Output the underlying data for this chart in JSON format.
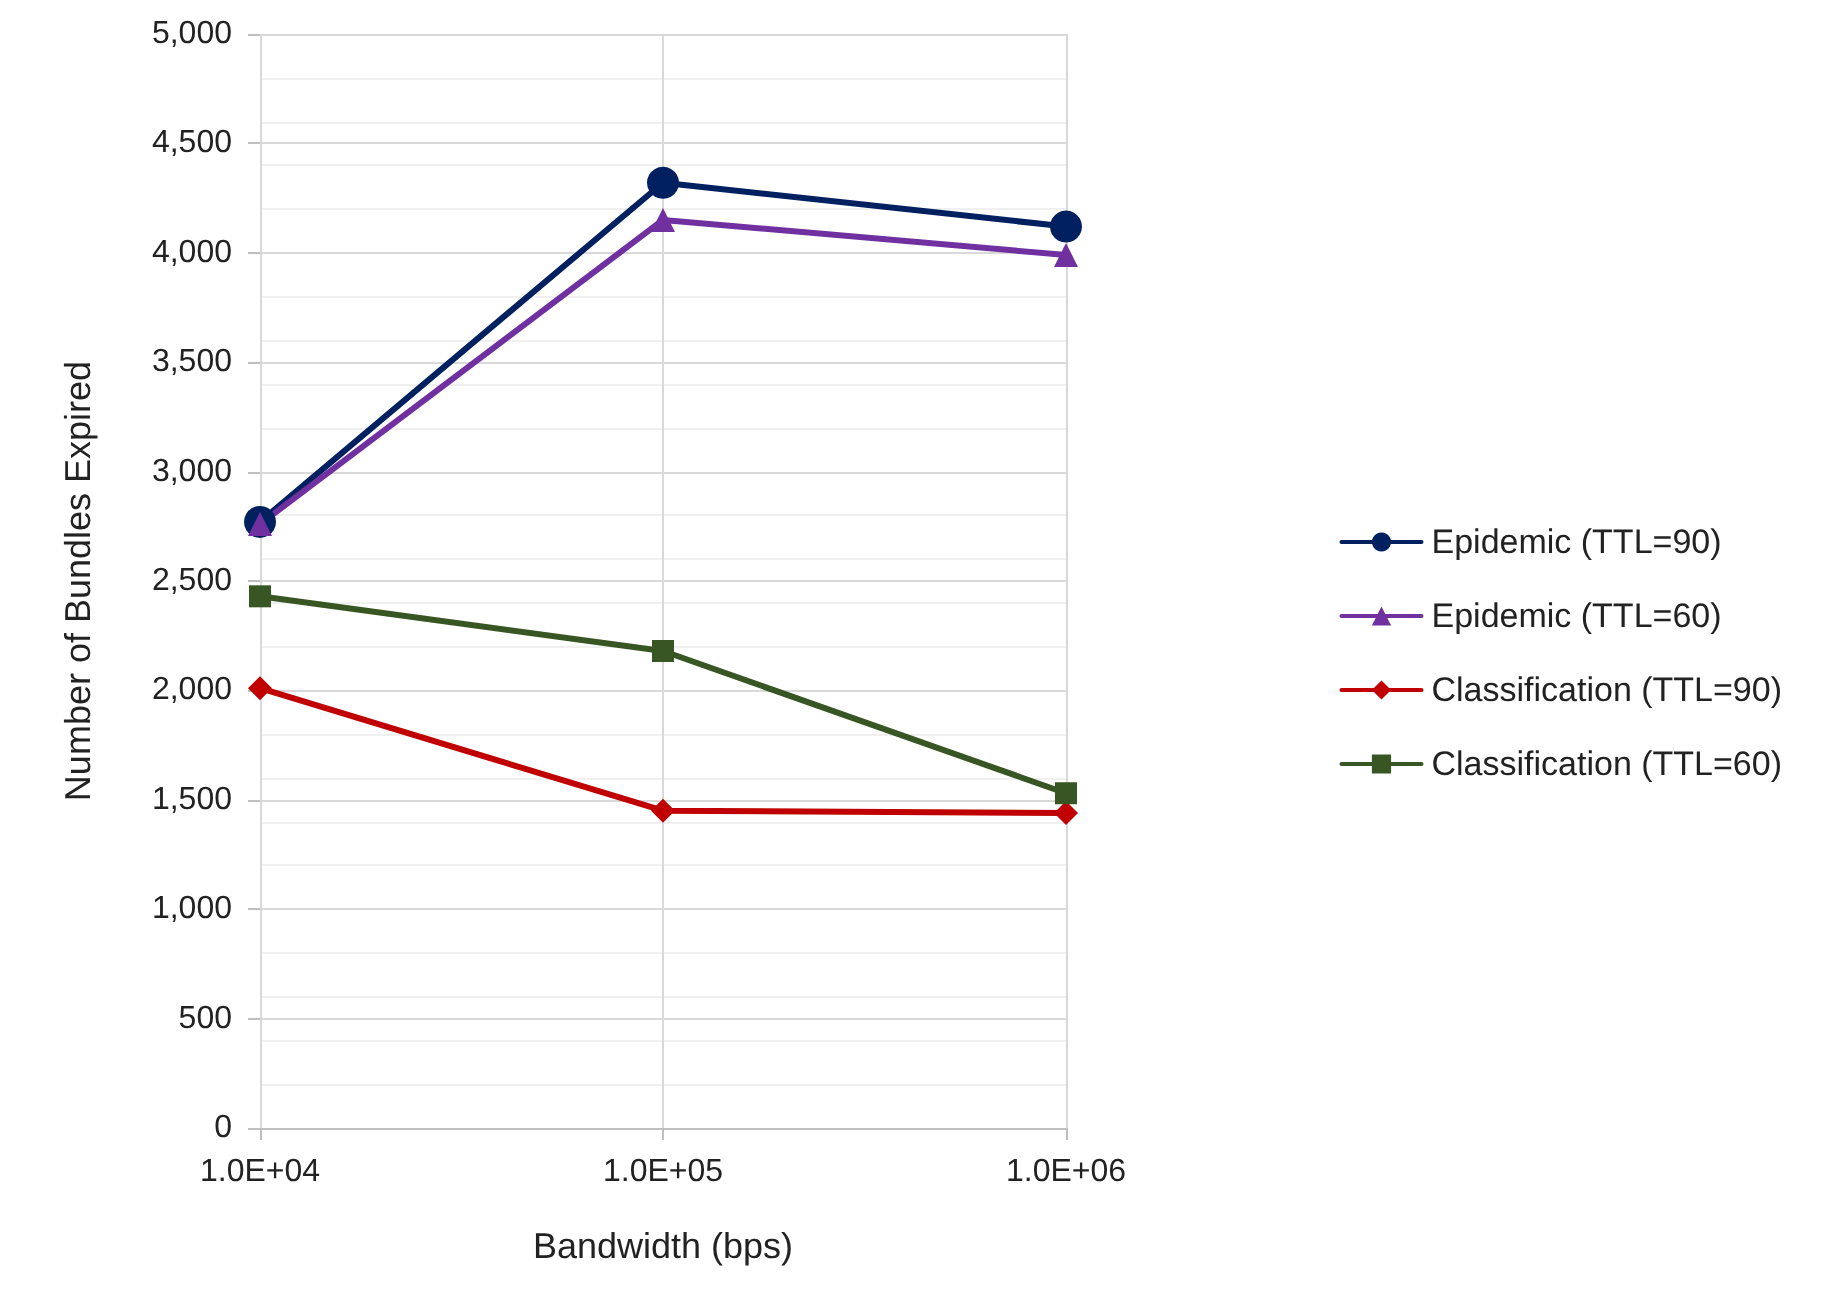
{
  "chart_data": {
    "type": "line",
    "xlabel": "Bandwidth (bps)",
    "ylabel": "Number of Bundles Expired",
    "x": [
      10000,
      100000,
      1000000
    ],
    "log": "x",
    "xlim": [
      10000,
      1000000
    ],
    "xticks": [
      {
        "value": 10000,
        "label": "1.0E+04"
      },
      {
        "value": 100000,
        "label": "1.0E+05"
      },
      {
        "value": 1000000,
        "label": "1.0E+06"
      }
    ],
    "ylim": [
      0,
      5000
    ],
    "yticks": [
      {
        "value": 0,
        "label": "0"
      },
      {
        "value": 500,
        "label": "500"
      },
      {
        "value": 1000,
        "label": "1,000"
      },
      {
        "value": 1500,
        "label": "1,500"
      },
      {
        "value": 2000,
        "label": "2,000"
      },
      {
        "value": 2500,
        "label": "2,500"
      },
      {
        "value": 3000,
        "label": "3,000"
      },
      {
        "value": 3500,
        "label": "3,500"
      },
      {
        "value": 4000,
        "label": "4,000"
      },
      {
        "value": 4500,
        "label": "4,500"
      },
      {
        "value": 5000,
        "label": "5,000"
      }
    ],
    "grid": true,
    "legend": "right",
    "series": [
      {
        "name": "Epidemic (TTL=90)",
        "color": "#002060",
        "marker": "circle",
        "values": [
          2770,
          4320,
          4120
        ]
      },
      {
        "name": "Epidemic (TTL=60)",
        "color": "#7030a0",
        "marker": "triangle",
        "values": [
          2760,
          4150,
          3990
        ]
      },
      {
        "name": "Classification (TTL=90)",
        "color": "#c00000",
        "marker": "diamond",
        "values": [
          2010,
          1450,
          1440
        ]
      },
      {
        "name": "Classification (TTL=60)",
        "color": "#375623",
        "marker": "square",
        "values": [
          2430,
          2180,
          1530
        ]
      }
    ]
  }
}
